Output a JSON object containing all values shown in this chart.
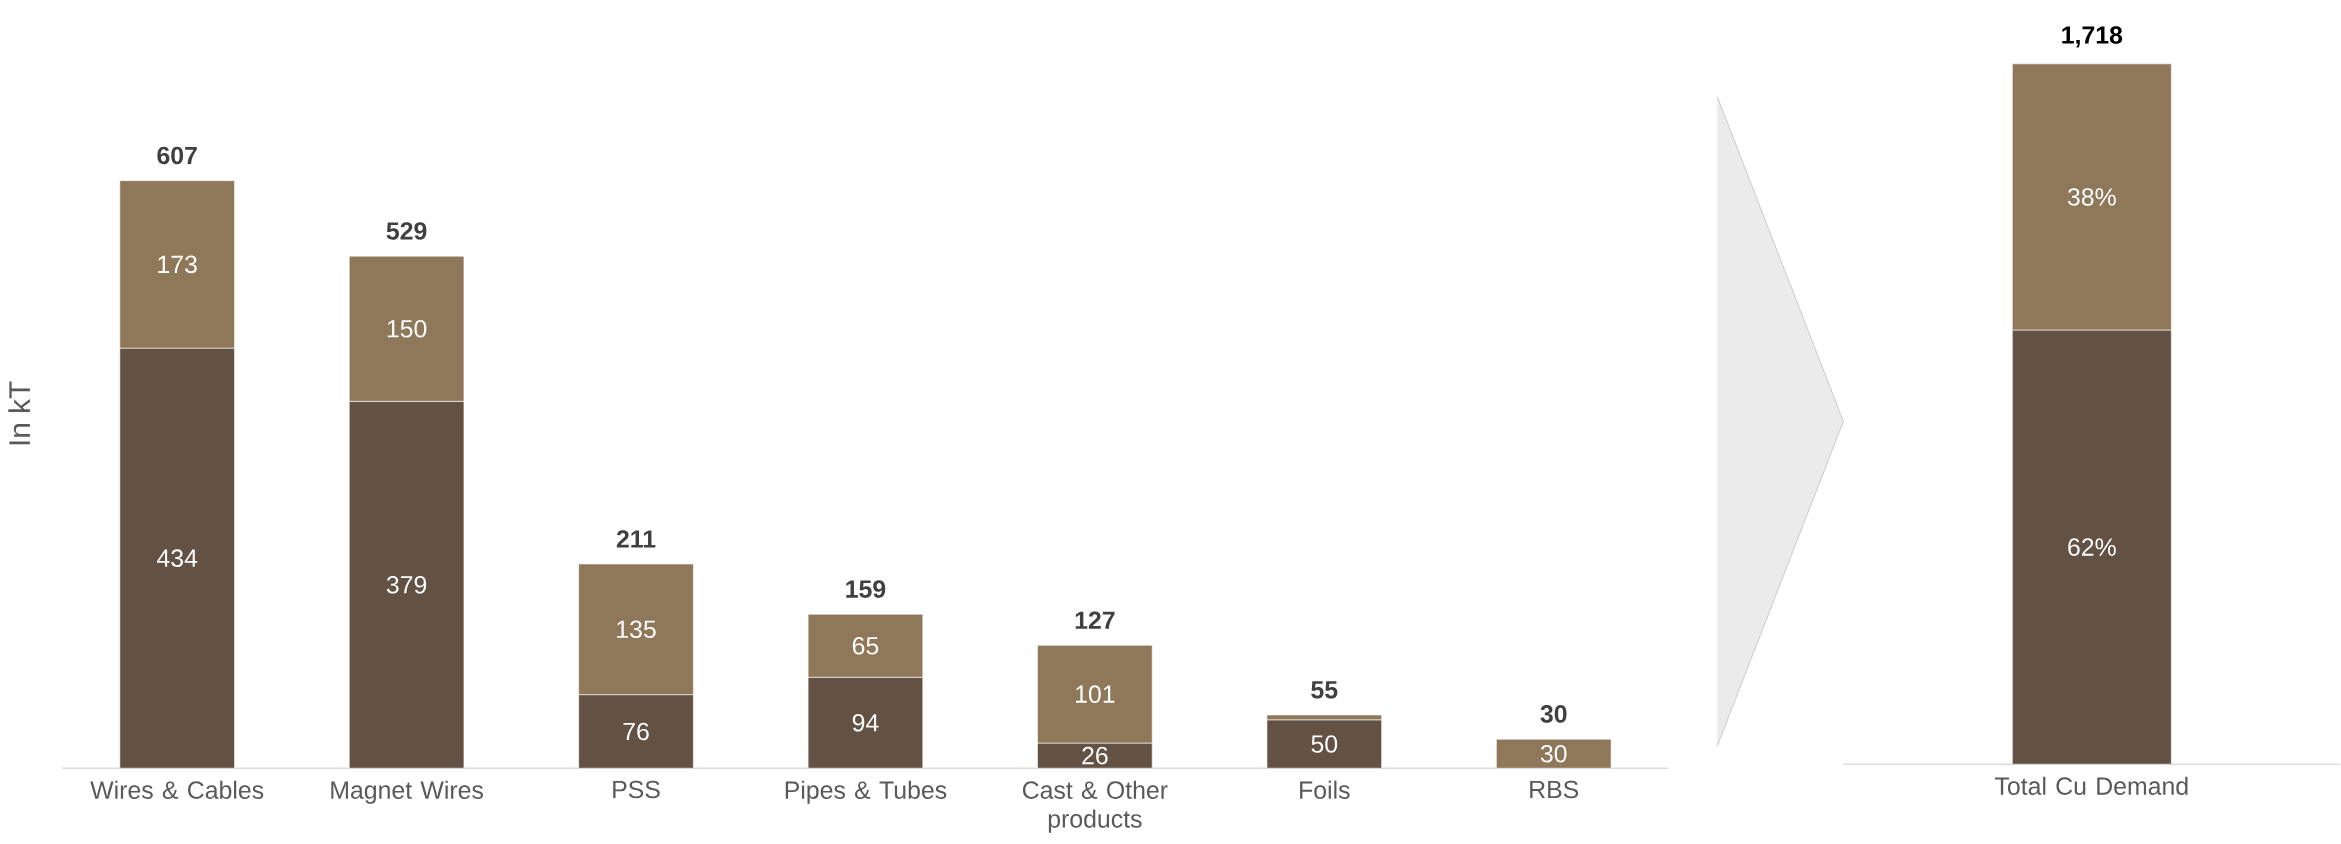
{
  "chart_data": [
    {
      "type": "bar",
      "stacked": true,
      "ylabel": "In kT",
      "categories": [
        "Wires & Cables",
        "Magnet Wires",
        "PSS",
        "Pipes & Tubes",
        "Cast & Other products",
        "Foils",
        "RBS"
      ],
      "series": [
        {
          "color": "#635244",
          "values": [
            434,
            379,
            76,
            94,
            26,
            50,
            null
          ],
          "value_labels": [
            "434",
            "379",
            "76",
            "94",
            "26",
            "50",
            null
          ]
        },
        {
          "color": "#8f7759",
          "values": [
            173,
            150,
            135,
            65,
            101,
            5,
            30
          ],
          "value_labels": [
            "173",
            "150",
            "135",
            "65",
            "101",
            null,
            "30"
          ]
        }
      ],
      "totals": [
        "607",
        "529",
        "211",
        "159",
        "127",
        "55",
        "30"
      ]
    },
    {
      "type": "bar",
      "stacked": true,
      "categories": [
        "Total Cu Demand"
      ],
      "series": [
        {
          "color": "#635244",
          "values": [
            62
          ],
          "value_labels": [
            "62%"
          ]
        },
        {
          "color": "#8f7759",
          "values": [
            38
          ],
          "value_labels": [
            "38%"
          ]
        }
      ],
      "annotations": [
        {
          "text": "1,718",
          "x": "Total Cu Demand",
          "y": 100
        }
      ]
    }
  ]
}
